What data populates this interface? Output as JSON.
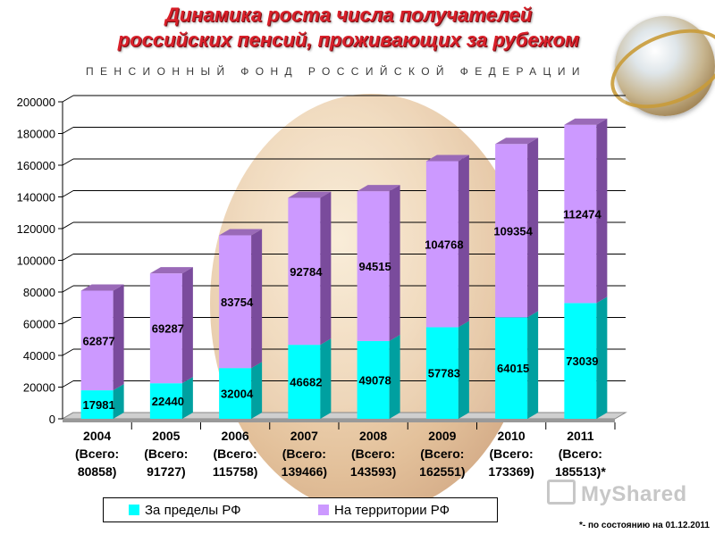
{
  "header": {
    "title_line1": "Динамика роста числа получателей",
    "title_line2": "российских пенсий, проживающих за рубежом",
    "subtitle": "ПЕНСИОННЫЙ ФОНД РОССИЙСКОЙ ФЕДЕРАЦИИ"
  },
  "footnote": "*- по состоянию  на 01.12.2011",
  "watermark": "MyShared",
  "colors": {
    "abroad": "#00ffff",
    "territory": "#cc99ff"
  },
  "chart_data": {
    "type": "bar",
    "stacked": true,
    "categories": [
      "2004",
      "2005",
      "2006",
      "2007",
      "2008",
      "2009",
      "2010",
      "2011"
    ],
    "category_labels": [
      [
        "2004",
        "(Всего:",
        "80858)"
      ],
      [
        "2005",
        "(Всего:",
        "91727)"
      ],
      [
        "2006",
        "(Всего:",
        "115758)"
      ],
      [
        "2007",
        "(Всего:",
        "139466)"
      ],
      [
        "2008",
        "(Всего:",
        "143593)"
      ],
      [
        "2009",
        "(Всего:",
        "162551)"
      ],
      [
        "2010",
        "(Всего:",
        "173369)"
      ],
      [
        "2011",
        "(Всего:",
        "185513)*"
      ]
    ],
    "series": [
      {
        "name": "За пределы РФ",
        "values": [
          17981,
          22440,
          32004,
          46682,
          49078,
          57783,
          64015,
          73039
        ]
      },
      {
        "name": "На территории РФ",
        "values": [
          62877,
          69287,
          83754,
          92784,
          94515,
          104768,
          109354,
          112474
        ]
      }
    ],
    "ylim": [
      0,
      200000
    ],
    "yticks": [
      0,
      20000,
      40000,
      60000,
      80000,
      100000,
      120000,
      140000,
      160000,
      180000,
      200000
    ],
    "grid": true,
    "legend_position": "bottom"
  }
}
